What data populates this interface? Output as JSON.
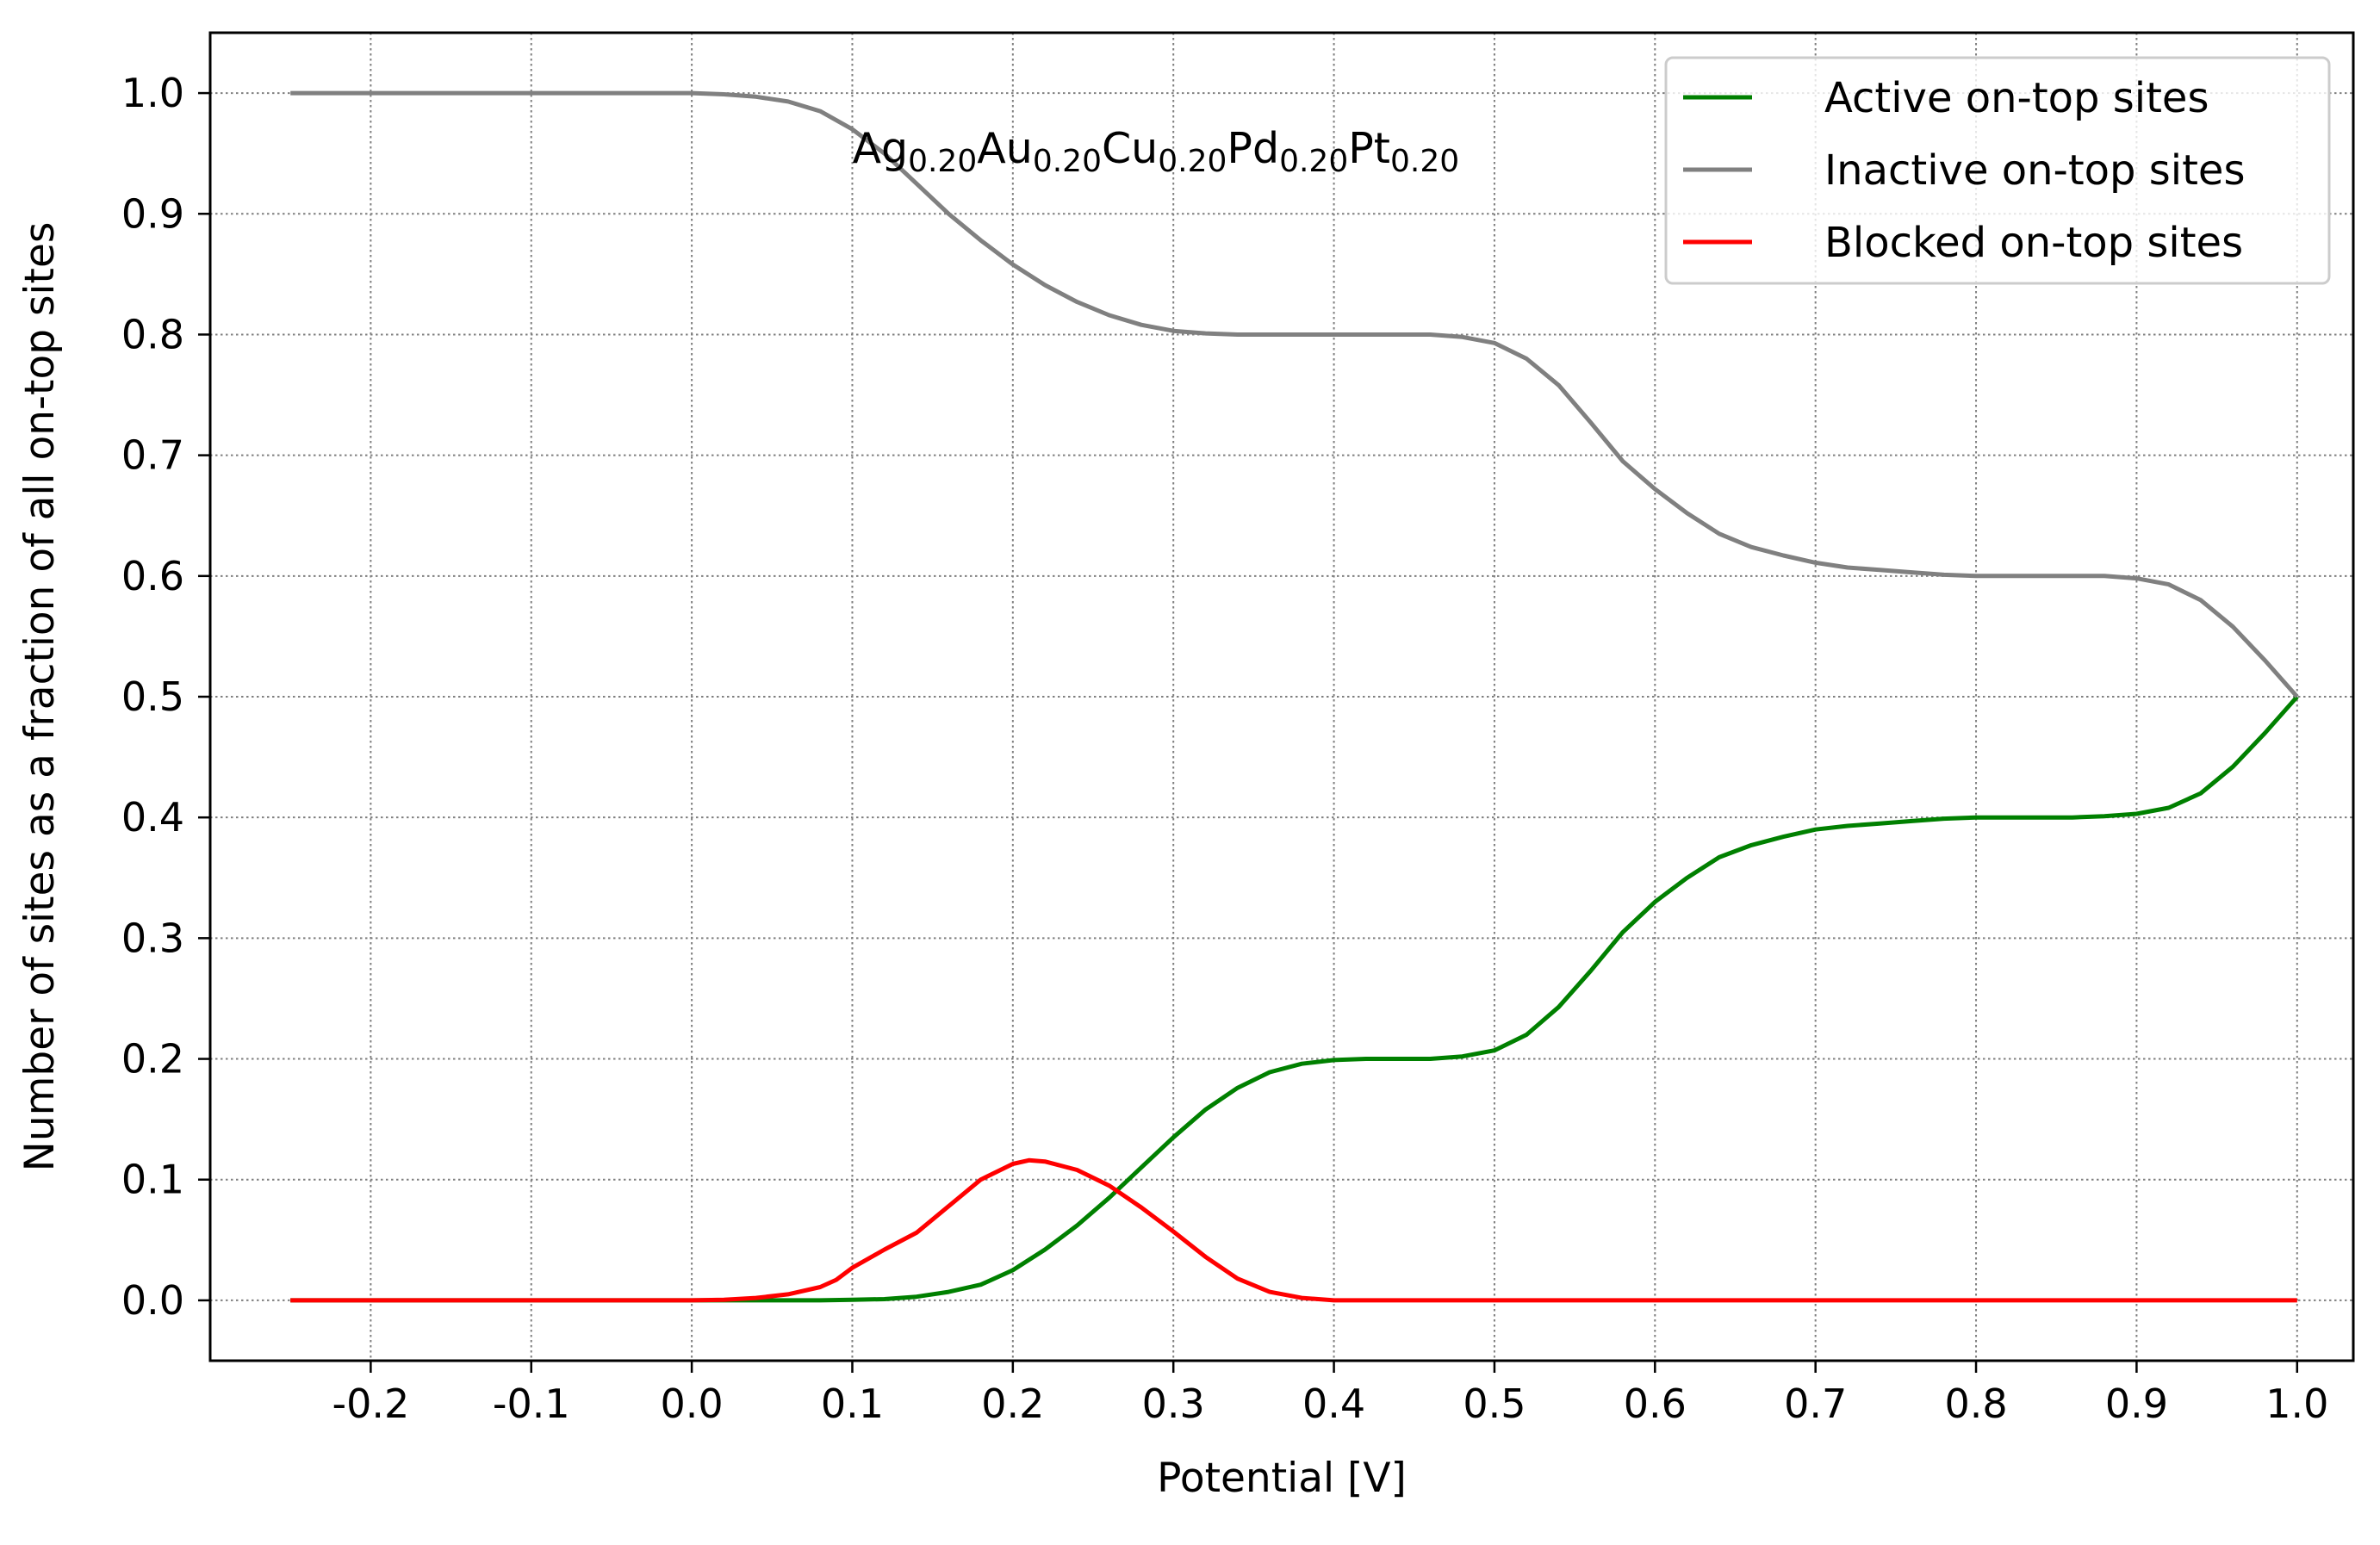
{
  "chart_data": {
    "type": "line",
    "title": "",
    "xlabel": "Potential [V]",
    "ylabel": "Number of sites as a fraction of all on-top sites",
    "xlim": [
      -0.3,
      1.035
    ],
    "ylim": [
      -0.05,
      1.05
    ],
    "xticks": [
      -0.2,
      -0.1,
      0.0,
      0.1,
      0.2,
      0.3,
      0.4,
      0.5,
      0.6,
      0.7,
      0.8,
      0.9,
      1.0
    ],
    "xtick_labels": [
      "-0.2",
      "-0.1",
      "0.0",
      "0.1",
      "0.2",
      "0.3",
      "0.4",
      "0.5",
      "0.6",
      "0.7",
      "0.8",
      "0.9",
      "1.0"
    ],
    "yticks": [
      0.0,
      0.1,
      0.2,
      0.3,
      0.4,
      0.5,
      0.6,
      0.7,
      0.8,
      0.9,
      1.0
    ],
    "ytick_labels": [
      "0.0",
      "0.1",
      "0.2",
      "0.3",
      "0.4",
      "0.5",
      "0.6",
      "0.7",
      "0.8",
      "0.9",
      "1.0"
    ],
    "grid": true,
    "legend_position": "top-right",
    "annotation": {
      "parts": [
        {
          "text": "Ag",
          "sub": false
        },
        {
          "text": "0.20",
          "sub": true
        },
        {
          "text": "Au",
          "sub": false
        },
        {
          "text": "0.20",
          "sub": true
        },
        {
          "text": "Cu",
          "sub": false
        },
        {
          "text": "0.20",
          "sub": true
        },
        {
          "text": "Pd",
          "sub": false
        },
        {
          "text": "0.20",
          "sub": true
        },
        {
          "text": "Pt",
          "sub": false
        },
        {
          "text": "0.20",
          "sub": true
        }
      ],
      "x": 0.1,
      "y": 0.955
    },
    "series": [
      {
        "name": "Active on-top sites",
        "color": "#008000",
        "x": [
          -0.25,
          0.0,
          0.04,
          0.08,
          0.1,
          0.12,
          0.14,
          0.16,
          0.18,
          0.2,
          0.22,
          0.24,
          0.26,
          0.28,
          0.3,
          0.32,
          0.34,
          0.36,
          0.38,
          0.4,
          0.42,
          0.44,
          0.46,
          0.48,
          0.5,
          0.52,
          0.54,
          0.56,
          0.58,
          0.6,
          0.62,
          0.64,
          0.66,
          0.68,
          0.7,
          0.72,
          0.74,
          0.76,
          0.78,
          0.8,
          0.82,
          0.84,
          0.86,
          0.88,
          0.9,
          0.92,
          0.94,
          0.96,
          0.98,
          1.0
        ],
        "y": [
          0.0,
          0.0,
          0.0,
          0.0,
          0.0005,
          0.001,
          0.003,
          0.007,
          0.013,
          0.025,
          0.042,
          0.062,
          0.085,
          0.11,
          0.135,
          0.158,
          0.176,
          0.189,
          0.196,
          0.199,
          0.2,
          0.2,
          0.2,
          0.202,
          0.207,
          0.22,
          0.243,
          0.273,
          0.305,
          0.33,
          0.35,
          0.367,
          0.377,
          0.384,
          0.39,
          0.393,
          0.395,
          0.397,
          0.399,
          0.4,
          0.4,
          0.4,
          0.4,
          0.401,
          0.403,
          0.408,
          0.42,
          0.442,
          0.47,
          0.5
        ]
      },
      {
        "name": "Inactive on-top sites",
        "color": "#808080",
        "x": [
          -0.25,
          0.0,
          0.02,
          0.04,
          0.06,
          0.08,
          0.1,
          0.12,
          0.14,
          0.16,
          0.18,
          0.2,
          0.22,
          0.24,
          0.26,
          0.28,
          0.3,
          0.32,
          0.34,
          0.36,
          0.38,
          0.4,
          0.42,
          0.44,
          0.46,
          0.48,
          0.5,
          0.52,
          0.54,
          0.56,
          0.58,
          0.6,
          0.62,
          0.64,
          0.66,
          0.68,
          0.7,
          0.72,
          0.74,
          0.76,
          0.78,
          0.8,
          0.82,
          0.84,
          0.86,
          0.88,
          0.9,
          0.92,
          0.94,
          0.96,
          0.98,
          1.0
        ],
        "y": [
          1.0,
          1.0,
          0.999,
          0.997,
          0.993,
          0.985,
          0.97,
          0.95,
          0.925,
          0.9,
          0.878,
          0.858,
          0.841,
          0.827,
          0.816,
          0.808,
          0.803,
          0.801,
          0.8,
          0.8,
          0.8,
          0.8,
          0.8,
          0.8,
          0.8,
          0.798,
          0.793,
          0.78,
          0.758,
          0.727,
          0.695,
          0.672,
          0.652,
          0.635,
          0.624,
          0.617,
          0.611,
          0.607,
          0.605,
          0.603,
          0.601,
          0.6,
          0.6,
          0.6,
          0.6,
          0.6,
          0.598,
          0.593,
          0.58,
          0.558,
          0.53,
          0.5
        ]
      },
      {
        "name": "Blocked on-top sites",
        "color": "#ff0000",
        "x": [
          -0.25,
          0.0,
          0.02,
          0.04,
          0.06,
          0.08,
          0.09,
          0.1,
          0.12,
          0.14,
          0.16,
          0.18,
          0.2,
          0.21,
          0.22,
          0.24,
          0.26,
          0.28,
          0.3,
          0.32,
          0.34,
          0.36,
          0.38,
          0.4,
          1.0
        ],
        "y": [
          0.0,
          0.0,
          0.0005,
          0.002,
          0.005,
          0.011,
          0.017,
          0.027,
          0.042,
          0.056,
          0.078,
          0.1,
          0.113,
          0.116,
          0.115,
          0.108,
          0.095,
          0.077,
          0.057,
          0.036,
          0.018,
          0.007,
          0.002,
          0.0,
          0.0
        ]
      }
    ]
  }
}
